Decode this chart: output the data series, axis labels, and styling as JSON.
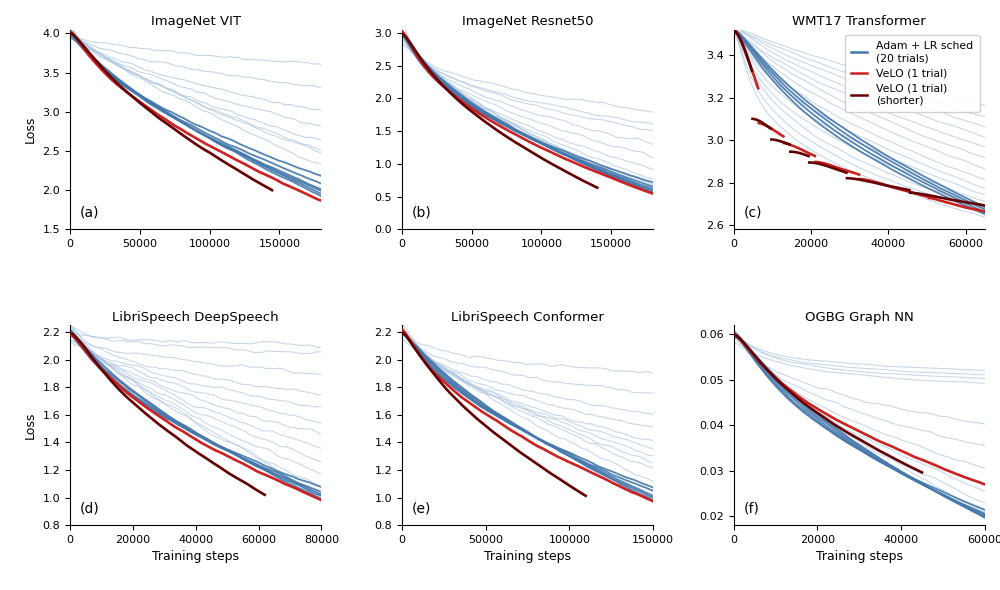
{
  "titles": [
    "ImageNet VIT",
    "ImageNet Resnet50",
    "WMT17 Transformer",
    "LibriSpeech DeepSpeech",
    "LibriSpeech Conformer",
    "OGBG Graph NN"
  ],
  "panel_labels": [
    "(a)",
    "(b)",
    "(c)",
    "(d)",
    "(e)",
    "(f)"
  ],
  "legend_labels": [
    "Adam + LR sched\n(20 trials)",
    "VeLO (1 trial)",
    "VeLO (1 trial)\n(shorter)"
  ],
  "light_blue": "#aac4e0",
  "mid_blue": "#4477aa",
  "red_color": "#cc2222",
  "dark_red_color": "#660000",
  "background": "#ffffff",
  "panels": [
    {
      "xlim": [
        0,
        180000
      ],
      "ylim": [
        1.5,
        4.05
      ],
      "xticks": [
        0,
        50000,
        100000,
        150000
      ],
      "yticks": [
        1.5,
        2.0,
        2.5,
        3.0,
        3.5,
        4.0
      ],
      "ylabel": "Loss",
      "xlabel": ""
    },
    {
      "xlim": [
        0,
        180000
      ],
      "ylim": [
        0.0,
        3.05
      ],
      "xticks": [
        0,
        50000,
        100000,
        150000
      ],
      "yticks": [
        0.0,
        0.5,
        1.0,
        1.5,
        2.0,
        2.5,
        3.0
      ],
      "ylabel": "",
      "xlabel": ""
    },
    {
      "xlim": [
        0,
        65000
      ],
      "ylim": [
        2.58,
        3.52
      ],
      "xticks": [
        0,
        20000,
        40000,
        60000
      ],
      "yticks": [
        2.6,
        2.8,
        3.0,
        3.2,
        3.4
      ],
      "ylabel": "",
      "xlabel": ""
    },
    {
      "xlim": [
        0,
        80000
      ],
      "ylim": [
        0.8,
        2.25
      ],
      "xticks": [
        0,
        20000,
        40000,
        60000,
        80000
      ],
      "yticks": [
        0.8,
        1.0,
        1.2,
        1.4,
        1.6,
        1.8,
        2.0,
        2.2
      ],
      "ylabel": "Loss",
      "xlabel": "Training steps"
    },
    {
      "xlim": [
        0,
        150000
      ],
      "ylim": [
        0.8,
        2.25
      ],
      "xticks": [
        0,
        50000,
        100000,
        150000
      ],
      "yticks": [
        0.8,
        1.0,
        1.2,
        1.4,
        1.6,
        1.8,
        2.0,
        2.2
      ],
      "ylabel": "",
      "xlabel": "Training steps"
    },
    {
      "xlim": [
        0,
        60000
      ],
      "ylim": [
        0.018,
        0.062
      ],
      "xticks": [
        0,
        20000,
        40000,
        60000
      ],
      "yticks": [
        0.02,
        0.03,
        0.04,
        0.05,
        0.06
      ],
      "ylabel": "",
      "xlabel": "Training steps"
    }
  ]
}
